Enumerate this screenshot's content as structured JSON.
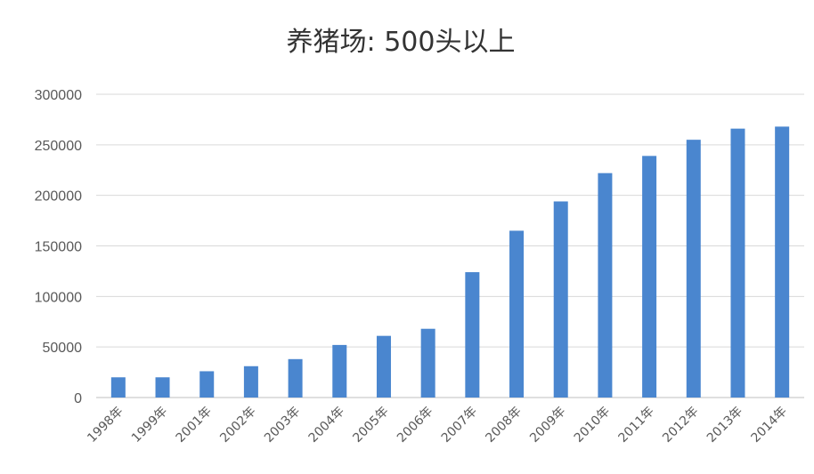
{
  "chart_data": {
    "type": "bar",
    "title": "养猪场: 500头以上",
    "xlabel": "",
    "ylabel": "",
    "categories": [
      "1998年",
      "1999年",
      "2001年",
      "2002年",
      "2003年",
      "2004年",
      "2005年",
      "2006年",
      "2007年",
      "2008年",
      "2009年",
      "2010年",
      "2011年",
      "2012年",
      "2013年",
      "2014年"
    ],
    "values": [
      20000,
      20000,
      26000,
      31000,
      38000,
      52000,
      61000,
      68000,
      124000,
      165000,
      194000,
      222000,
      239000,
      255000,
      266000,
      268000
    ],
    "ylim": [
      0,
      300000
    ],
    "yticks": [
      "0",
      "50000",
      "100000",
      "150000",
      "200000",
      "250000",
      "300000"
    ],
    "grid": true,
    "legend": "none",
    "colors": {
      "bar": "#4a86cf"
    }
  }
}
